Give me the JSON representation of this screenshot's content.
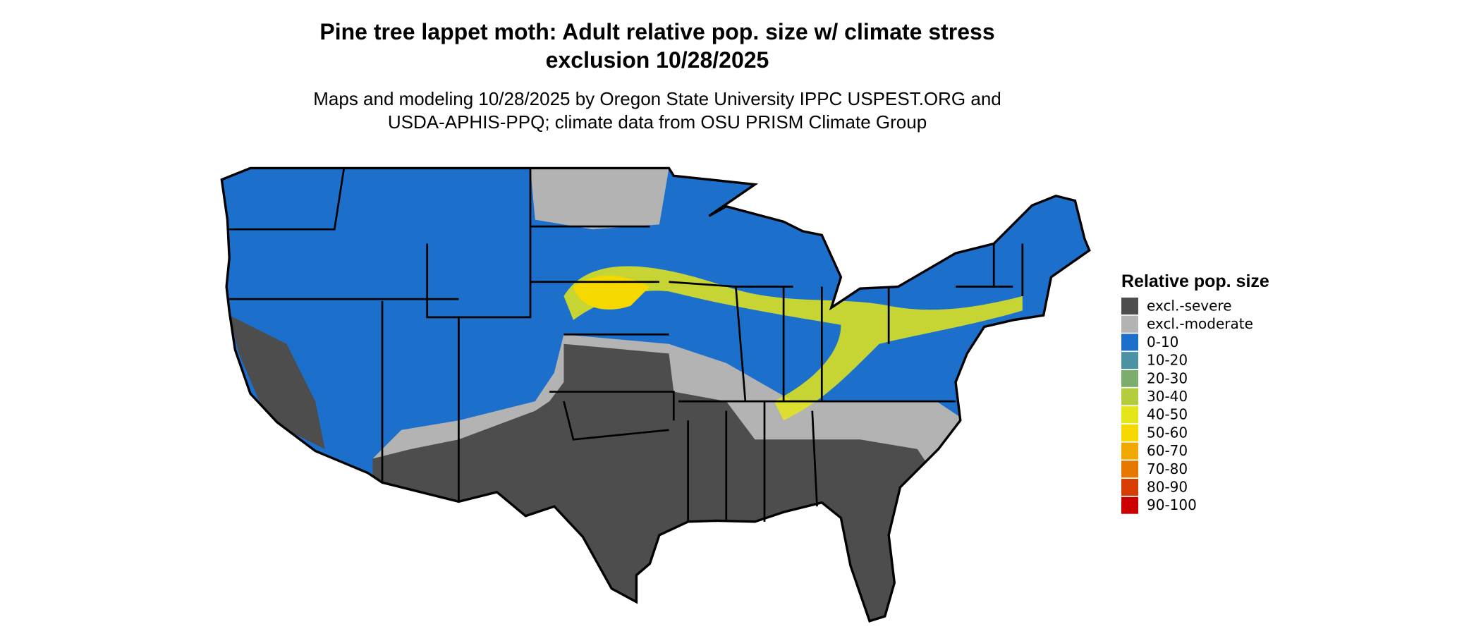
{
  "map": {
    "title": [
      "Pine tree lappet moth: Adult relative pop. size w/ climate stress",
      "exclusion 10/28/2025"
    ],
    "subtitle": [
      "Maps and modeling 10/28/2025 by Oregon State University IPPC USPEST.ORG and",
      "USDA-APHIS-PPQ; climate data from OSU PRISM Climate Group"
    ],
    "legend": {
      "title": "Relative pop. size",
      "items": [
        {
          "label": "excl.-severe",
          "color": "#4d4d4d"
        },
        {
          "label": "excl.-moderate",
          "color": "#b3b3b3"
        },
        {
          "label": "0-10",
          "color": "#1c70cc"
        },
        {
          "label": "10-20",
          "color": "#4b92a2"
        },
        {
          "label": "20-30",
          "color": "#7cac6c"
        },
        {
          "label": "30-40",
          "color": "#b2cc3c"
        },
        {
          "label": "40-50",
          "color": "#e4e619"
        },
        {
          "label": "50-60",
          "color": "#f5d800"
        },
        {
          "label": "60-70",
          "color": "#f0a800"
        },
        {
          "label": "70-80",
          "color": "#e67800"
        },
        {
          "label": "80-90",
          "color": "#d83c00"
        },
        {
          "label": "90-100",
          "color": "#cc0000"
        }
      ]
    }
  }
}
